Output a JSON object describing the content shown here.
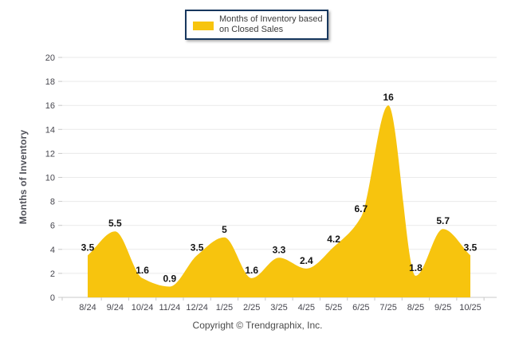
{
  "legend": {
    "label": "Months of Inventory based on Closed Sales"
  },
  "y_axis_title": "Months of Inventory",
  "footer": {
    "copyright": "Copyright © Trendgraphix, Inc."
  },
  "colors": {
    "area_fill": "#F7C40E",
    "grid_line": "#EAEAEA",
    "axis_line": "#C8C8C8",
    "tick_label": "#47474F",
    "data_label": "#141414",
    "legend_border": "#17375E"
  },
  "chart_data": {
    "type": "area",
    "title": "",
    "series_name": "Months of Inventory based on Closed Sales",
    "categories": [
      "8/24",
      "9/24",
      "10/24",
      "11/24",
      "12/24",
      "1/25",
      "2/25",
      "3/25",
      "4/25",
      "5/25",
      "6/25",
      "7/25",
      "8/25",
      "9/25",
      "10/25"
    ],
    "values": [
      3.5,
      5.5,
      1.6,
      0.9,
      3.5,
      5,
      1.6,
      3.3,
      2.4,
      4.2,
      6.7,
      16,
      1.8,
      5.7,
      3.5
    ],
    "xlabel": "",
    "ylabel": "Months of Inventory",
    "ylim": [
      0,
      20
    ],
    "ytick_step": 2,
    "yticks": [
      0,
      2,
      4,
      6,
      8,
      10,
      12,
      14,
      16,
      18,
      20
    ],
    "grid": "horizontal",
    "legend_position": "top-center",
    "smooth": true,
    "data_labels": true
  }
}
